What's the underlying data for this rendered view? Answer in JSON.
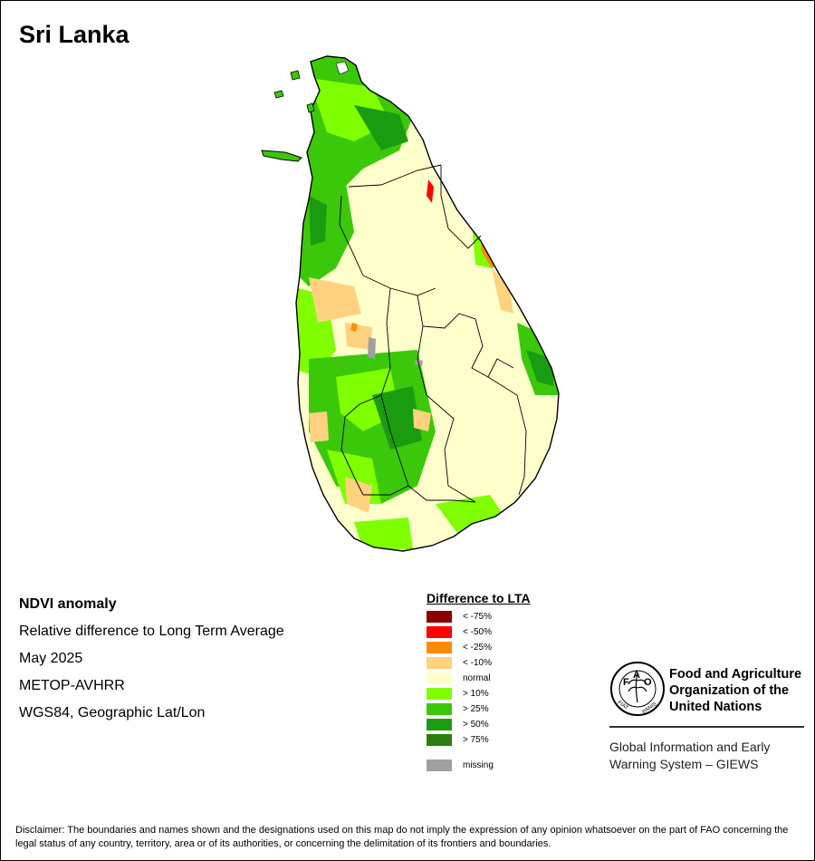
{
  "map": {
    "title": "Sri Lanka",
    "colors": {
      "lt75": "#8b0000",
      "lt50": "#ff0000",
      "lt25": "#ff8c00",
      "lt10": "#ffd27f",
      "normal": "#ffffcc",
      "gt10": "#7fff00",
      "gt25": "#3cc80a",
      "gt50": "#1a9c10",
      "gt75": "#2e7d0f",
      "missing": "#a0a0a0"
    }
  },
  "info": {
    "product": "NDVI anomaly",
    "description": "Relative difference to Long Term Average",
    "date": "May 2025",
    "sensor": "METOP-AVHRR",
    "projection": "WGS84, Geographic Lat/Lon"
  },
  "legend": {
    "title": "Difference to LTA",
    "items": [
      {
        "label": "< -75%",
        "color": "#8b0000"
      },
      {
        "label": "< -50%",
        "color": "#ff0000"
      },
      {
        "label": "< -25%",
        "color": "#ff8c00"
      },
      {
        "label": "< -10%",
        "color": "#ffd27f"
      },
      {
        "label": "normal",
        "color": "#ffffcc"
      },
      {
        "label": "> 10%",
        "color": "#7fff00"
      },
      {
        "label": "> 25%",
        "color": "#3cc80a"
      },
      {
        "label": "> 50%",
        "color": "#1a9c10"
      },
      {
        "label": "> 75%",
        "color": "#2e7d0f"
      },
      {
        "label": "missing",
        "color": "#a0a0a0"
      }
    ]
  },
  "logo": {
    "fao_letters": "FAO",
    "fiat": "FIAT",
    "panis": "PANIS",
    "org_line1": "Food and Agriculture",
    "org_line2": "Organization of the",
    "org_line3": "United Nations",
    "giews_line1": "Global Information and Early",
    "giews_line2": "Warning System – GIEWS"
  },
  "disclaimer": "Disclaimer: The boundaries and names shown and the designations used on this map do not imply the expression of any opinion whatsoever on the part of FAO concerning the legal status of any country, territory, area or of its authorities, or concerning the delimitation of its frontiers and boundaries."
}
